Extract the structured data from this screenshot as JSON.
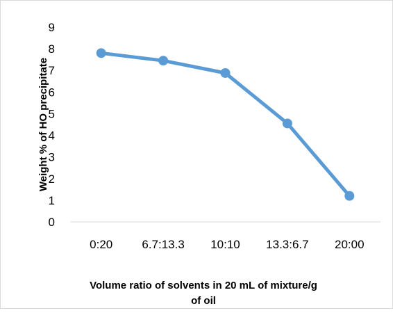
{
  "chart_data": {
    "type": "line",
    "title": "",
    "xlabel": [
      "Volume ratio of solvents in 20 mL of mixture/g",
      "of oil"
    ],
    "ylabel": "Weight % of HO precipitate",
    "categories": [
      "0:20",
      "6.7:13.3",
      "10:10",
      "13.3:6.7",
      "20:00"
    ],
    "series": [
      {
        "values": [
          7.8,
          7.45,
          6.88,
          4.55,
          1.2
        ],
        "color": "#5b9bd5"
      }
    ],
    "ylim": [
      0,
      9
    ],
    "yticks": [
      "0",
      "1",
      "2",
      "3",
      "4",
      "5",
      "6",
      "7",
      "8",
      "9"
    ],
    "grid": false,
    "legend": "none",
    "marker": "circle"
  }
}
